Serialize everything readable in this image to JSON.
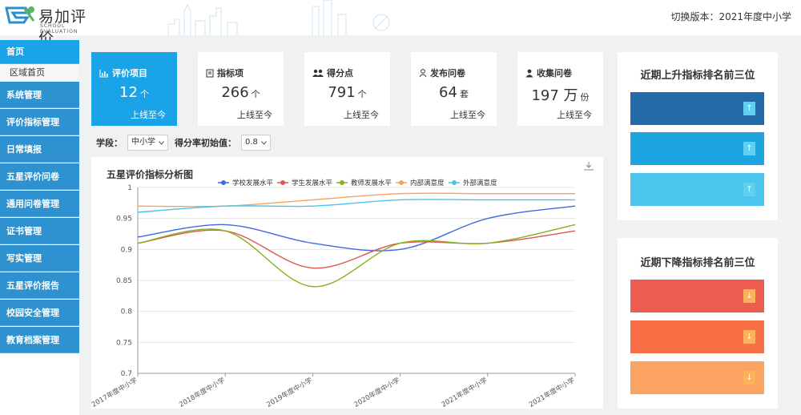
{
  "header": {
    "logo_title": "易加评价",
    "logo_sub": "SCHOOL EVALUATION",
    "version_text": "切换版本：2021年度中小学"
  },
  "sidebar": {
    "items": [
      {
        "label": "首页",
        "active": true
      },
      {
        "label": "系统管理"
      },
      {
        "label": "评价指标管理"
      },
      {
        "label": "日常填报"
      },
      {
        "label": "五星评价问卷"
      },
      {
        "label": "通用问卷管理"
      },
      {
        "label": "证书管理"
      },
      {
        "label": "写实管理"
      },
      {
        "label": "五星评价报告"
      },
      {
        "label": "校园安全管理"
      },
      {
        "label": "教育档案管理"
      }
    ],
    "sub_item": "区域首页"
  },
  "cards": [
    {
      "title": "评价项目",
      "value": "12",
      "unit": "个",
      "footer": "上线至今",
      "icon": "bar-chart-icon"
    },
    {
      "title": "指标项",
      "value": "266",
      "unit": "个",
      "footer": "上线至今",
      "icon": "document-icon"
    },
    {
      "title": "得分点",
      "value": "791",
      "unit": "个",
      "footer": "上线至今",
      "icon": "group-icon"
    },
    {
      "title": "发布问卷",
      "value": "64",
      "unit": "套",
      "footer": "上线至今",
      "icon": "user-icon"
    },
    {
      "title": "收集问卷",
      "value": "197 万",
      "unit": "份",
      "footer": "上线至今",
      "icon": "user-badge-icon"
    }
  ],
  "filters": {
    "stage_label": "学段：",
    "stage_value": "中小学",
    "init_label": "得分率初始值：",
    "init_value": "0.8"
  },
  "chart_data": {
    "type": "line",
    "title": "五星评价指标分析图",
    "categories": [
      "2017年度中小学",
      "2018年度中小学",
      "2019年度中小学",
      "2020年度中小学",
      "2021年度中小学",
      "2021年度中小学"
    ],
    "ylim": [
      0.7,
      1
    ],
    "yticks": [
      "0.7",
      "0.75",
      "0.8",
      "0.85",
      "0.9",
      "0.95",
      "1"
    ],
    "grid": true,
    "legend_position": "top",
    "series": [
      {
        "name": "学校发展水平",
        "color": "#4169e1",
        "values": [
          0.92,
          0.94,
          0.91,
          0.9,
          0.95,
          0.97
        ]
      },
      {
        "name": "学生发展水平",
        "color": "#e0554e",
        "values": [
          0.91,
          0.93,
          0.87,
          0.91,
          0.91,
          0.93
        ]
      },
      {
        "name": "教师发展水平",
        "color": "#86b11e",
        "values": [
          0.91,
          0.93,
          0.84,
          0.91,
          0.91,
          0.94
        ]
      },
      {
        "name": "内部满意度",
        "color": "#f7a35c",
        "values": [
          0.97,
          0.97,
          0.98,
          0.99,
          0.99,
          0.99
        ]
      },
      {
        "name": "外部满意度",
        "color": "#49c5e8",
        "values": [
          0.96,
          0.97,
          0.97,
          0.98,
          0.98,
          0.98
        ]
      }
    ]
  },
  "rank_up": {
    "title": "近期上升指标排名前三位",
    "colors": [
      "#246aa8",
      "#1ca5e1",
      "#4cc6ef"
    ],
    "arrow_color": "#5fd0f0",
    "arrow": "↑"
  },
  "rank_down": {
    "title": "近期下降指标排名前三位",
    "colors": [
      "#ec5c50",
      "#f97046",
      "#fba360"
    ],
    "arrow_color": "#fcb25a",
    "arrow": "↓"
  }
}
